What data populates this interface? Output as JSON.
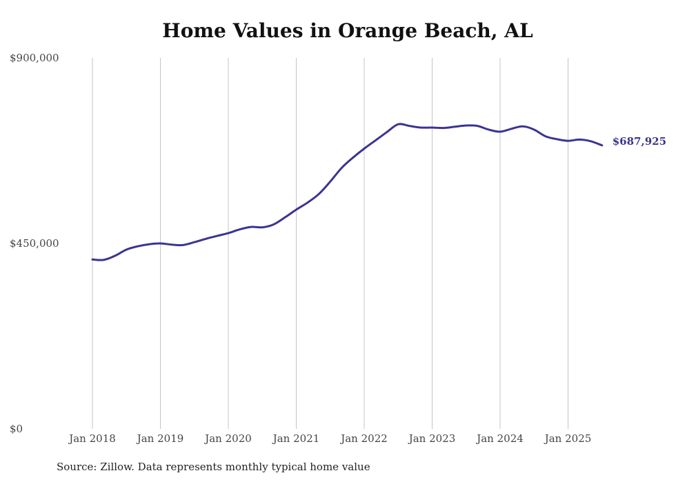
{
  "chart_data": {
    "type": "line",
    "title": "Home Values in Orange Beach, AL",
    "xlabel": "",
    "ylabel": "",
    "ylim": [
      0,
      900000
    ],
    "yticks": [
      {
        "value": 0,
        "label": "$0"
      },
      {
        "value": 450000,
        "label": "$450,000"
      },
      {
        "value": 900000,
        "label": "$900,000"
      }
    ],
    "xticks": [
      {
        "year": 2018,
        "label": "Jan 2018"
      },
      {
        "year": 2019,
        "label": "Jan 2019"
      },
      {
        "year": 2020,
        "label": "Jan 2020"
      },
      {
        "year": 2021,
        "label": "Jan 2021"
      },
      {
        "year": 2022,
        "label": "Jan 2022"
      },
      {
        "year": 2023,
        "label": "Jan 2023"
      },
      {
        "year": 2024,
        "label": "Jan 2024"
      },
      {
        "year": 2025,
        "label": "Jan 2025"
      }
    ],
    "grid": "vertical",
    "color": "#3b3491",
    "end_label": "$687,925",
    "series": [
      {
        "points": [
          [
            "2018-01",
            411000
          ],
          [
            "2018-03",
            410000
          ],
          [
            "2018-05",
            420000
          ],
          [
            "2018-07",
            435000
          ],
          [
            "2018-09",
            443000
          ],
          [
            "2018-11",
            448000
          ],
          [
            "2019-01",
            450000
          ],
          [
            "2019-03",
            447000
          ],
          [
            "2019-05",
            446000
          ],
          [
            "2019-07",
            453000
          ],
          [
            "2019-09",
            461000
          ],
          [
            "2019-11",
            468000
          ],
          [
            "2020-01",
            475000
          ],
          [
            "2020-03",
            484000
          ],
          [
            "2020-05",
            490000
          ],
          [
            "2020-07",
            489000
          ],
          [
            "2020-09",
            496000
          ],
          [
            "2020-11",
            513000
          ],
          [
            "2021-01",
            532000
          ],
          [
            "2021-03",
            549000
          ],
          [
            "2021-05",
            570000
          ],
          [
            "2021-07",
            600000
          ],
          [
            "2021-09",
            633000
          ],
          [
            "2021-11",
            658000
          ],
          [
            "2022-01",
            680000
          ],
          [
            "2022-03",
            700000
          ],
          [
            "2022-05",
            720000
          ],
          [
            "2022-07",
            739000
          ],
          [
            "2022-09",
            735000
          ],
          [
            "2022-11",
            731000
          ],
          [
            "2023-01",
            731000
          ],
          [
            "2023-03",
            730000
          ],
          [
            "2023-05",
            733000
          ],
          [
            "2023-07",
            736000
          ],
          [
            "2023-09",
            735000
          ],
          [
            "2023-11",
            726000
          ],
          [
            "2024-01",
            721000
          ],
          [
            "2024-03",
            728000
          ],
          [
            "2024-05",
            734000
          ],
          [
            "2024-07",
            726000
          ],
          [
            "2024-09",
            710000
          ],
          [
            "2024-11",
            703000
          ],
          [
            "2025-01",
            699000
          ],
          [
            "2025-03",
            702000
          ],
          [
            "2025-05",
            698000
          ],
          [
            "2025-07",
            687925
          ]
        ]
      }
    ]
  },
  "source_note": "Source: Zillow. Data represents monthly typical home value"
}
